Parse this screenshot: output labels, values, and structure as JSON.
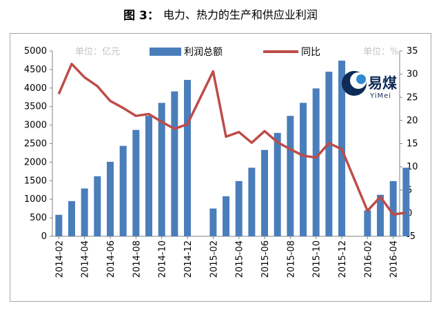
{
  "figure": {
    "label": "图 3：",
    "title": "电力、热力的生产和供应业利润"
  },
  "logo": {
    "main": "易煤",
    "sub": "YiMei"
  },
  "chart_data": {
    "type": "bar+line",
    "units": {
      "left": "单位：亿元",
      "right": "单位：%"
    },
    "x_tick_labels": [
      "2014-02",
      "2014-04",
      "2014-06",
      "2014-08",
      "2014-10",
      "2014-12",
      "2015-02",
      "2015-04",
      "2015-06",
      "2015-08",
      "2015-10",
      "2015-12",
      "2016-02",
      "2016-04"
    ],
    "x": [
      "2014-02",
      "2014-03",
      "2014-04",
      "2014-05",
      "2014-06",
      "2014-07",
      "2014-08",
      "2014-09",
      "2014-10",
      "2014-11",
      "2014-12",
      "2015-02",
      "2015-03",
      "2015-04",
      "2015-05",
      "2015-06",
      "2015-07",
      "2015-08",
      "2015-09",
      "2015-10",
      "2015-11",
      "2015-12",
      "2016-02",
      "2016-03",
      "2016-04",
      "2016-05"
    ],
    "series": [
      {
        "name": "利润总额",
        "type": "bar",
        "axis": "left",
        "color": "#4a7ebb",
        "values": [
          580,
          950,
          1290,
          1620,
          2010,
          2440,
          2870,
          3250,
          3600,
          3910,
          4220,
          750,
          1080,
          1490,
          1850,
          2330,
          2790,
          3250,
          3600,
          3990,
          4440,
          4740,
          700,
          1120,
          1490,
          1850
        ]
      },
      {
        "name": "同比",
        "type": "line",
        "axis": "right",
        "color": "#be4b48",
        "values": [
          25.7,
          32.2,
          29.3,
          27.4,
          24.2,
          22.7,
          21.0,
          21.4,
          19.7,
          18.2,
          19.2,
          30.6,
          16.5,
          17.5,
          15.2,
          17.7,
          15.3,
          13.8,
          12.4,
          12.0,
          15.1,
          13.8,
          0.5,
          3.5,
          -0.3,
          0.1
        ]
      }
    ],
    "y_left": {
      "min": 0,
      "max": 5000,
      "ticks": [
        "0",
        "500",
        "1000",
        "1500",
        "2000",
        "2500",
        "3000",
        "3500",
        "4000",
        "4500",
        "5000"
      ]
    },
    "y_right": {
      "min": -5,
      "max": 35,
      "ticks": [
        "-5",
        "0",
        "5",
        "10",
        "15",
        "20",
        "25",
        "30",
        "35"
      ]
    },
    "legend": "top",
    "grid": false
  }
}
